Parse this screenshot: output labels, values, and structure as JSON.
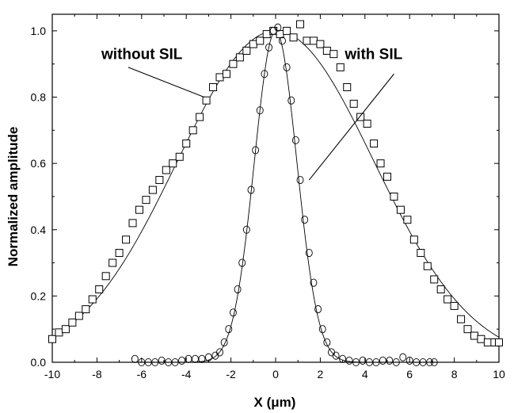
{
  "chart_data": {
    "type": "scatter",
    "xlabel": "X (μm)",
    "ylabel": "Normalized amplitude",
    "xlim": [
      -10,
      10
    ],
    "ylim": [
      0,
      1.05
    ],
    "x_ticks": [
      -10,
      -8,
      -6,
      -4,
      -2,
      0,
      2,
      4,
      6,
      8,
      10
    ],
    "y_ticks": [
      0.0,
      0.2,
      0.4,
      0.6,
      0.8,
      1.0
    ],
    "x_tick_labels": [
      "-10",
      "-8",
      "-6",
      "-4",
      "-2",
      "0",
      "2",
      "4",
      "6",
      "8",
      "10"
    ],
    "y_tick_labels": [
      "0.0",
      "0.2",
      "0.4",
      "0.6",
      "0.8",
      "1.0"
    ],
    "grid": false,
    "series": [
      {
        "marker": "square",
        "fit_curve": {
          "shape": "gaussian",
          "center": 0.0,
          "peak": 1.0,
          "sigma": 4.4
        },
        "points": [
          [
            -10.0,
            0.07
          ],
          [
            -9.7,
            0.09
          ],
          [
            -9.4,
            0.1
          ],
          [
            -9.1,
            0.12
          ],
          [
            -8.8,
            0.14
          ],
          [
            -8.5,
            0.16
          ],
          [
            -8.2,
            0.19
          ],
          [
            -7.9,
            0.22
          ],
          [
            -7.6,
            0.26
          ],
          [
            -7.3,
            0.3
          ],
          [
            -7.0,
            0.33
          ],
          [
            -6.7,
            0.37
          ],
          [
            -6.4,
            0.42
          ],
          [
            -6.1,
            0.46
          ],
          [
            -5.8,
            0.49
          ],
          [
            -5.5,
            0.52
          ],
          [
            -5.2,
            0.55
          ],
          [
            -4.9,
            0.58
          ],
          [
            -4.6,
            0.6
          ],
          [
            -4.3,
            0.62
          ],
          [
            -4.0,
            0.66
          ],
          [
            -3.7,
            0.7
          ],
          [
            -3.4,
            0.74
          ],
          [
            -3.1,
            0.79
          ],
          [
            -2.8,
            0.83
          ],
          [
            -2.5,
            0.86
          ],
          [
            -2.2,
            0.87
          ],
          [
            -1.9,
            0.9
          ],
          [
            -1.6,
            0.92
          ],
          [
            -1.3,
            0.94
          ],
          [
            -1.0,
            0.96
          ],
          [
            -0.7,
            0.97
          ],
          [
            -0.4,
            0.99
          ],
          [
            -0.1,
            1.0
          ],
          [
            0.2,
            0.99
          ],
          [
            0.5,
            1.0
          ],
          [
            0.8,
            0.98
          ],
          [
            1.1,
            1.02
          ],
          [
            1.4,
            0.97
          ],
          [
            1.7,
            0.97
          ],
          [
            2.0,
            0.96
          ],
          [
            2.3,
            0.94
          ],
          [
            2.6,
            0.93
          ],
          [
            2.9,
            0.89
          ],
          [
            3.2,
            0.83
          ],
          [
            3.5,
            0.78
          ],
          [
            3.8,
            0.74
          ],
          [
            4.1,
            0.72
          ],
          [
            4.4,
            0.66
          ],
          [
            4.7,
            0.6
          ],
          [
            5.0,
            0.56
          ],
          [
            5.3,
            0.5
          ],
          [
            5.6,
            0.46
          ],
          [
            5.9,
            0.43
          ],
          [
            6.2,
            0.37
          ],
          [
            6.5,
            0.33
          ],
          [
            6.8,
            0.29
          ],
          [
            7.1,
            0.25
          ],
          [
            7.4,
            0.22
          ],
          [
            7.7,
            0.19
          ],
          [
            8.0,
            0.17
          ],
          [
            8.3,
            0.13
          ],
          [
            8.6,
            0.1
          ],
          [
            8.9,
            0.08
          ],
          [
            9.2,
            0.07
          ],
          [
            9.5,
            0.06
          ],
          [
            9.8,
            0.06
          ],
          [
            10.0,
            0.06
          ]
        ]
      },
      {
        "marker": "circle",
        "fit_curve": {
          "shape": "gaussian",
          "center": 0.0,
          "peak": 1.0,
          "sigma": 0.95
        },
        "points": [
          [
            -6.3,
            0.01
          ],
          [
            -6.0,
            0.0
          ],
          [
            -5.7,
            0.0
          ],
          [
            -5.4,
            0.0
          ],
          [
            -5.1,
            0.005
          ],
          [
            -4.8,
            0.0
          ],
          [
            -4.5,
            0.0
          ],
          [
            -4.2,
            0.005
          ],
          [
            -3.9,
            0.01
          ],
          [
            -3.6,
            0.01
          ],
          [
            -3.3,
            0.01
          ],
          [
            -3.0,
            0.015
          ],
          [
            -2.7,
            0.02
          ],
          [
            -2.5,
            0.03
          ],
          [
            -2.3,
            0.06
          ],
          [
            -2.1,
            0.1
          ],
          [
            -1.9,
            0.15
          ],
          [
            -1.7,
            0.22
          ],
          [
            -1.5,
            0.3
          ],
          [
            -1.3,
            0.4
          ],
          [
            -1.1,
            0.52
          ],
          [
            -0.9,
            0.64
          ],
          [
            -0.7,
            0.76
          ],
          [
            -0.5,
            0.87
          ],
          [
            -0.3,
            0.95
          ],
          [
            -0.1,
            1.0
          ],
          [
            0.1,
            1.01
          ],
          [
            0.3,
            0.97
          ],
          [
            0.5,
            0.89
          ],
          [
            0.7,
            0.79
          ],
          [
            0.9,
            0.67
          ],
          [
            1.1,
            0.55
          ],
          [
            1.3,
            0.43
          ],
          [
            1.5,
            0.33
          ],
          [
            1.7,
            0.24
          ],
          [
            1.9,
            0.16
          ],
          [
            2.1,
            0.1
          ],
          [
            2.3,
            0.06
          ],
          [
            2.5,
            0.03
          ],
          [
            2.7,
            0.02
          ],
          [
            3.0,
            0.01
          ],
          [
            3.3,
            0.005
          ],
          [
            3.6,
            0.0
          ],
          [
            3.9,
            0.005
          ],
          [
            4.2,
            0.0
          ],
          [
            4.5,
            0.0
          ],
          [
            4.8,
            0.005
          ],
          [
            5.1,
            0.005
          ],
          [
            5.4,
            0.0
          ],
          [
            5.7,
            0.015
          ],
          [
            6.0,
            0.005
          ],
          [
            6.3,
            0.0
          ],
          [
            6.6,
            0.0
          ],
          [
            6.9,
            0.0
          ],
          [
            7.1,
            0.0
          ]
        ]
      }
    ],
    "annotations": [
      {
        "text": "without SIL",
        "x": -7.8,
        "y": 0.915,
        "pointer": [
          [
            -6.6,
            0.89
          ],
          [
            -3.2,
            0.8
          ]
        ]
      },
      {
        "text": "with SIL",
        "x": 3.1,
        "y": 0.915,
        "pointer": [
          [
            5.3,
            0.87
          ],
          [
            1.5,
            0.55
          ]
        ]
      }
    ]
  }
}
